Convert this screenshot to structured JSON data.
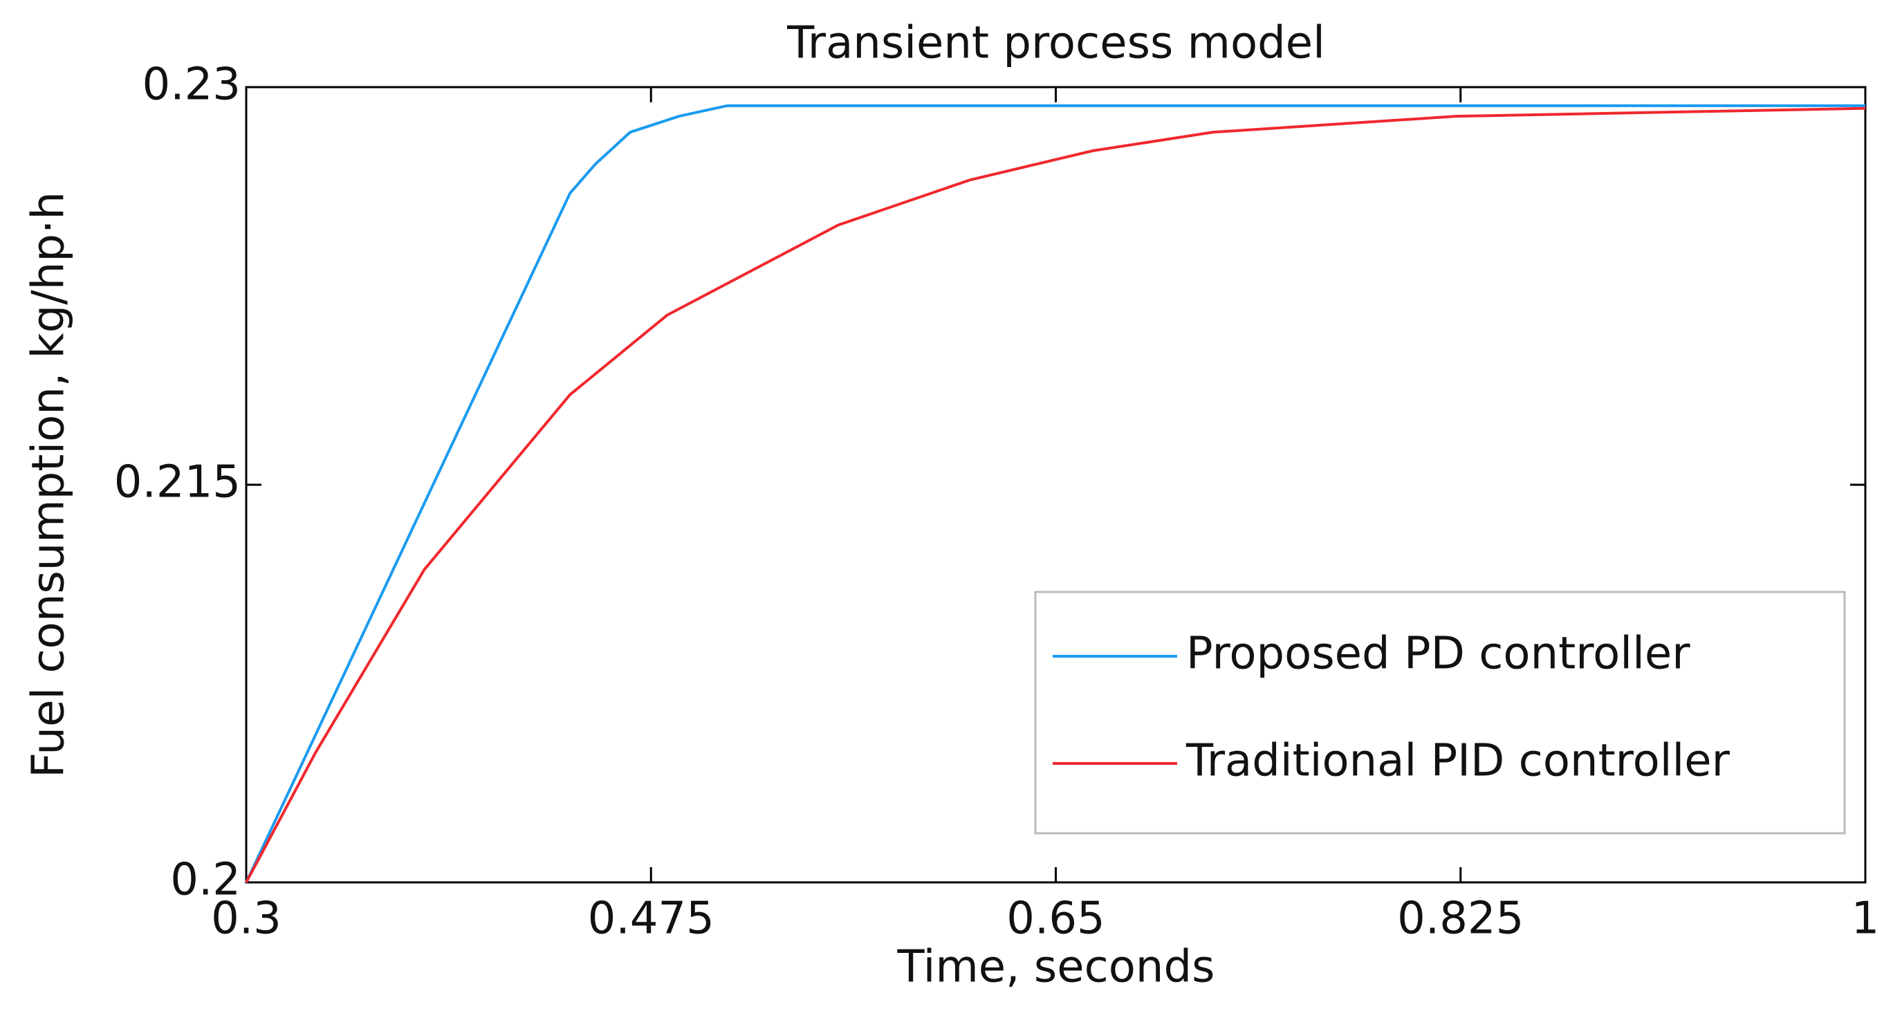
{
  "chart_data": {
    "type": "line",
    "title": "Transient process model",
    "x_label": "Time, seconds",
    "y_label": "Fuel consumption, kg/hp·h",
    "xlim": [
      0.3,
      1
    ],
    "ylim": [
      0.2,
      0.23
    ],
    "xticks": [
      0.3,
      0.475,
      0.65,
      0.825,
      1
    ],
    "yticks": [
      0.2,
      0.215,
      0.23
    ],
    "legend": "lower right",
    "series": [
      {
        "name": "Proposed PD controller",
        "color": "#1a9bf0",
        "x": [
          0.3,
          0.44,
          0.451,
          0.466,
          0.487,
          0.508,
          1
        ],
        "values": [
          0.2,
          0.226,
          0.2271,
          0.2283,
          0.2289,
          0.2293,
          0.2293
        ]
      },
      {
        "name": "Traditional PID controller",
        "color": "#f0282d",
        "x": [
          0.3,
          0.33,
          0.377,
          0.44,
          0.482,
          0.556,
          0.613,
          0.666,
          0.718,
          0.823,
          1
        ],
        "values": [
          0.2,
          0.2049,
          0.2118,
          0.2184,
          0.2214,
          0.2248,
          0.2265,
          0.2276,
          0.2283,
          0.2289,
          0.2292
        ]
      }
    ]
  }
}
